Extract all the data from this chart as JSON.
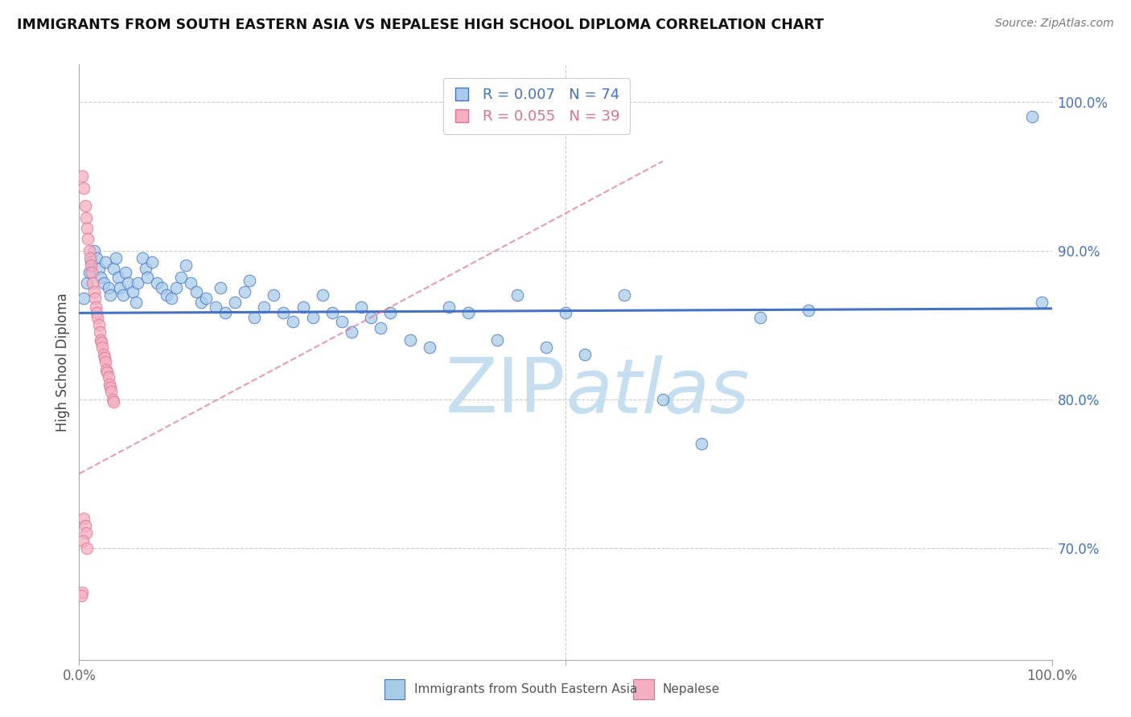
{
  "title": "IMMIGRANTS FROM SOUTH EASTERN ASIA VS NEPALESE HIGH SCHOOL DIPLOMA CORRELATION CHART",
  "source": "Source: ZipAtlas.com",
  "ylabel": "High School Diploma",
  "xlabel_label": "Immigrants from South Eastern Asia",
  "nepalese_label": "Nepalese",
  "blue_R": 0.007,
  "blue_N": 74,
  "pink_R": 0.055,
  "pink_N": 39,
  "blue_color": "#a8cce8",
  "pink_color": "#f4afc0",
  "blue_line_color": "#4472c4",
  "pink_line_color": "#e07090",
  "watermark_color": "#c5dff0",
  "xlim": [
    0.0,
    1.0
  ],
  "ylim": [
    0.625,
    1.025
  ],
  "yticks": [
    0.7,
    0.8,
    0.9,
    1.0
  ],
  "ytick_labels": [
    "70.0%",
    "80.0%",
    "90.0%",
    "100.0%"
  ],
  "blue_x": [
    0.005,
    0.008,
    0.01,
    0.012,
    0.015,
    0.018,
    0.02,
    0.022,
    0.025,
    0.027,
    0.03,
    0.032,
    0.035,
    0.038,
    0.04,
    0.042,
    0.045,
    0.048,
    0.05,
    0.055,
    0.058,
    0.06,
    0.065,
    0.068,
    0.07,
    0.075,
    0.08,
    0.085,
    0.09,
    0.095,
    0.1,
    0.105,
    0.11,
    0.115,
    0.12,
    0.125,
    0.13,
    0.14,
    0.145,
    0.15,
    0.16,
    0.17,
    0.175,
    0.18,
    0.19,
    0.2,
    0.21,
    0.22,
    0.23,
    0.24,
    0.25,
    0.26,
    0.27,
    0.28,
    0.29,
    0.3,
    0.31,
    0.32,
    0.34,
    0.36,
    0.38,
    0.4,
    0.43,
    0.45,
    0.48,
    0.5,
    0.52,
    0.56,
    0.6,
    0.64,
    0.7,
    0.75,
    0.98,
    0.99
  ],
  "blue_y": [
    0.868,
    0.878,
    0.885,
    0.893,
    0.9,
    0.895,
    0.888,
    0.882,
    0.878,
    0.892,
    0.875,
    0.87,
    0.888,
    0.895,
    0.882,
    0.875,
    0.87,
    0.885,
    0.878,
    0.872,
    0.865,
    0.878,
    0.895,
    0.888,
    0.882,
    0.892,
    0.878,
    0.875,
    0.87,
    0.868,
    0.875,
    0.882,
    0.89,
    0.878,
    0.872,
    0.865,
    0.868,
    0.862,
    0.875,
    0.858,
    0.865,
    0.872,
    0.88,
    0.855,
    0.862,
    0.87,
    0.858,
    0.852,
    0.862,
    0.855,
    0.87,
    0.858,
    0.852,
    0.845,
    0.862,
    0.855,
    0.848,
    0.858,
    0.84,
    0.835,
    0.862,
    0.858,
    0.84,
    0.87,
    0.835,
    0.858,
    0.83,
    0.87,
    0.8,
    0.77,
    0.855,
    0.86,
    0.99,
    0.865
  ],
  "pink_x": [
    0.003,
    0.005,
    0.006,
    0.007,
    0.008,
    0.009,
    0.01,
    0.011,
    0.012,
    0.013,
    0.014,
    0.015,
    0.016,
    0.017,
    0.018,
    0.019,
    0.02,
    0.021,
    0.022,
    0.023,
    0.024,
    0.025,
    0.026,
    0.027,
    0.028,
    0.029,
    0.03,
    0.031,
    0.032,
    0.033,
    0.034,
    0.035,
    0.005,
    0.006,
    0.007,
    0.004,
    0.008,
    0.003,
    0.002
  ],
  "pink_y": [
    0.95,
    0.942,
    0.93,
    0.922,
    0.915,
    0.908,
    0.9,
    0.895,
    0.89,
    0.885,
    0.878,
    0.872,
    0.868,
    0.862,
    0.858,
    0.855,
    0.85,
    0.845,
    0.84,
    0.838,
    0.835,
    0.83,
    0.828,
    0.825,
    0.82,
    0.818,
    0.815,
    0.81,
    0.808,
    0.805,
    0.8,
    0.798,
    0.72,
    0.715,
    0.71,
    0.705,
    0.7,
    0.67,
    0.668
  ],
  "blue_line_y0": 0.858,
  "blue_line_y1": 0.861,
  "pink_line_x0": 0.0,
  "pink_line_y0": 0.75,
  "pink_line_x1": 0.6,
  "pink_line_y1": 0.96
}
